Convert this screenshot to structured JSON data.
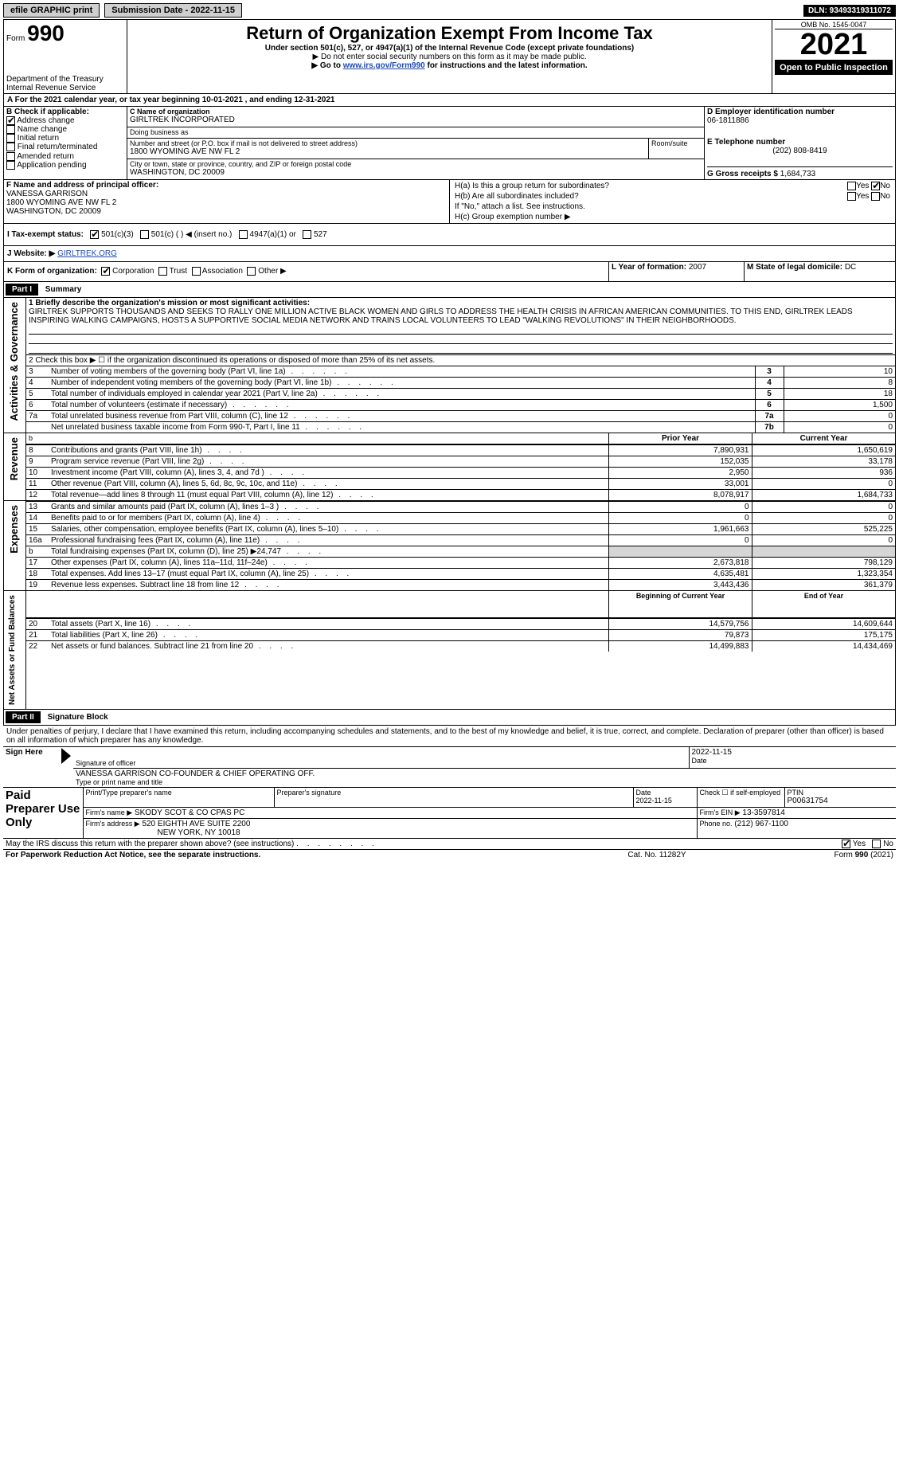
{
  "topbar": {
    "efile": "efile GRAPHIC print",
    "submission": "Submission Date - 2022-11-15",
    "dln": "DLN: 93493319311072"
  },
  "header": {
    "form_word": "Form",
    "form_num": "990",
    "title": "Return of Organization Exempt From Income Tax",
    "subtitle": "Under section 501(c), 527, or 4947(a)(1) of the Internal Revenue Code (except private foundations)",
    "warn": "▶ Do not enter social security numbers on this form as it may be made public.",
    "goto_pre": "▶ Go to ",
    "goto_link": "www.irs.gov/Form990",
    "goto_post": " for instructions and the latest information.",
    "dept1": "Department of the Treasury",
    "dept2": "Internal Revenue Service",
    "omb": "OMB No. 1545-0047",
    "year": "2021",
    "open": "Open to Public Inspection"
  },
  "A": {
    "label": "For the 2021 calendar year, or tax year beginning ",
    "begin": "10-01-2021",
    "mid": " , and ending ",
    "end": "12-31-2021"
  },
  "B": {
    "label": "B Check if applicable:",
    "items": [
      "Address change",
      "Name change",
      "Initial return",
      "Final return/terminated",
      "Amended return",
      "Application pending"
    ],
    "checked_index": 0
  },
  "C": {
    "name_lbl": "C Name of organization",
    "name": "GIRLTREK INCORPORATED",
    "dba_lbl": "Doing business as",
    "dba": "",
    "street_lbl": "Number and street (or P.O. box if mail is not delivered to street address)",
    "room_lbl": "Room/suite",
    "street": "1800 WYOMING AVE NW FL 2",
    "city_lbl": "City or town, state or province, country, and ZIP or foreign postal code",
    "city": "WASHINGTON, DC  20009"
  },
  "D": {
    "lbl": "D Employer identification number",
    "val": "06-1811886"
  },
  "E": {
    "lbl": "E Telephone number",
    "val": "(202) 808-8419"
  },
  "G": {
    "lbl": "G Gross receipts $",
    "val": "1,684,733"
  },
  "F": {
    "lbl": "F  Name and address of principal officer:",
    "name": "VANESSA GARRISON",
    "addr1": "1800 WYOMING AVE NW FL 2",
    "addr2": "WASHINGTON, DC  20009"
  },
  "H": {
    "a": "H(a)  Is this a group return for subordinates?",
    "b": "H(b)  Are all subordinates included?",
    "b_note": "If \"No,\" attach a list. See instructions.",
    "c": "H(c)  Group exemption number ▶",
    "yes": "Yes",
    "no": "No"
  },
  "I": {
    "lbl": "I  Tax-exempt status:",
    "opts": [
      "501(c)(3)",
      "501(c) (  ) ◀ (insert no.)",
      "4947(a)(1) or",
      "527"
    ]
  },
  "J": {
    "lbl": "J  Website: ▶",
    "val": "GIRLTREK.ORG"
  },
  "K": {
    "lbl": "K Form of organization:",
    "opts": [
      "Corporation",
      "Trust",
      "Association",
      "Other ▶"
    ]
  },
  "L": {
    "lbl": "L Year of formation:",
    "val": "2007"
  },
  "M": {
    "lbl": "M State of legal domicile:",
    "val": "DC"
  },
  "part1": {
    "tag": "Part I",
    "title": "Summary"
  },
  "mission": {
    "lbl": "1  Briefly describe the organization's mission or most significant activities:",
    "text": "GIRLTREK SUPPORTS THOUSANDS AND SEEKS TO RALLY ONE MILLION ACTIVE BLACK WOMEN AND GIRLS TO ADDRESS THE HEALTH CRISIS IN AFRICAN AMERICAN COMMUNITIES. TO THIS END, GIRLTREK LEADS INSPIRING WALKING CAMPAIGNS, HOSTS A SUPPORTIVE SOCIAL MEDIA NETWORK AND TRAINS LOCAL VOLUNTEERS TO LEAD \"WALKING REVOLUTIONS\" IN THEIR NEIGHBORHOODS."
  },
  "line2": "2  Check this box ▶ ☐ if the organization discontinued its operations or disposed of more than 25% of its net assets.",
  "gov_rows": [
    {
      "n": "3",
      "t": "Number of voting members of the governing body (Part VI, line 1a)",
      "box": "3",
      "v": "10"
    },
    {
      "n": "4",
      "t": "Number of independent voting members of the governing body (Part VI, line 1b)",
      "box": "4",
      "v": "8"
    },
    {
      "n": "5",
      "t": "Total number of individuals employed in calendar year 2021 (Part V, line 2a)",
      "box": "5",
      "v": "18"
    },
    {
      "n": "6",
      "t": "Total number of volunteers (estimate if necessary)",
      "box": "6",
      "v": "1,500"
    },
    {
      "n": "7a",
      "t": "Total unrelated business revenue from Part VIII, column (C), line 12",
      "box": "7a",
      "v": "0"
    },
    {
      "n": "",
      "t": "Net unrelated business taxable income from Form 990-T, Part I, line 11",
      "box": "7b",
      "v": "0"
    }
  ],
  "col_hdr": {
    "prior": "Prior Year",
    "current": "Current Year"
  },
  "rev_rows": [
    {
      "n": "8",
      "t": "Contributions and grants (Part VIII, line 1h)",
      "p": "7,890,931",
      "c": "1,650,619"
    },
    {
      "n": "9",
      "t": "Program service revenue (Part VIII, line 2g)",
      "p": "152,035",
      "c": "33,178"
    },
    {
      "n": "10",
      "t": "Investment income (Part VIII, column (A), lines 3, 4, and 7d )",
      "p": "2,950",
      "c": "936"
    },
    {
      "n": "11",
      "t": "Other revenue (Part VIII, column (A), lines 5, 6d, 8c, 9c, 10c, and 11e)",
      "p": "33,001",
      "c": "0"
    },
    {
      "n": "12",
      "t": "Total revenue—add lines 8 through 11 (must equal Part VIII, column (A), line 12)",
      "p": "8,078,917",
      "c": "1,684,733"
    }
  ],
  "exp_rows": [
    {
      "n": "13",
      "t": "Grants and similar amounts paid (Part IX, column (A), lines 1–3 )",
      "p": "0",
      "c": "0"
    },
    {
      "n": "14",
      "t": "Benefits paid to or for members (Part IX, column (A), line 4)",
      "p": "0",
      "c": "0"
    },
    {
      "n": "15",
      "t": "Salaries, other compensation, employee benefits (Part IX, column (A), lines 5–10)",
      "p": "1,961,663",
      "c": "525,225"
    },
    {
      "n": "16a",
      "t": "Professional fundraising fees (Part IX, column (A), line 11e)",
      "p": "0",
      "c": "0"
    },
    {
      "n": "b",
      "t": "Total fundraising expenses (Part IX, column (D), line 25) ▶24,747",
      "p": "",
      "c": "",
      "shade": true
    },
    {
      "n": "17",
      "t": "Other expenses (Part IX, column (A), lines 11a–11d, 11f–24e)",
      "p": "2,673,818",
      "c": "798,129"
    },
    {
      "n": "18",
      "t": "Total expenses. Add lines 13–17 (must equal Part IX, column (A), line 25)",
      "p": "4,635,481",
      "c": "1,323,354"
    },
    {
      "n": "19",
      "t": "Revenue less expenses. Subtract line 18 from line 12",
      "p": "3,443,436",
      "c": "361,379"
    }
  ],
  "col_hdr2": {
    "begin": "Beginning of Current Year",
    "end": "End of Year"
  },
  "net_label": "b",
  "net_rows": [
    {
      "n": "20",
      "t": "Total assets (Part X, line 16)",
      "p": "14,579,756",
      "c": "14,609,644"
    },
    {
      "n": "21",
      "t": "Total liabilities (Part X, line 26)",
      "p": "79,873",
      "c": "175,175"
    },
    {
      "n": "22",
      "t": "Net assets or fund balances. Subtract line 21 from line 20",
      "p": "14,499,883",
      "c": "14,434,469"
    }
  ],
  "sections": {
    "gov": "Activities & Governance",
    "rev": "Revenue",
    "exp": "Expenses",
    "net": "Net Assets or Fund Balances"
  },
  "part2": {
    "tag": "Part II",
    "title": "Signature Block"
  },
  "sig": {
    "penalty": "Under penalties of perjury, I declare that I have examined this return, including accompanying schedules and statements, and to the best of my knowledge and belief, it is true, correct, and complete. Declaration of preparer (other than officer) is based on all information of which preparer has any knowledge.",
    "sign_here": "Sign Here",
    "sig_officer": "Signature of officer",
    "date": "Date",
    "date_val": "2022-11-15",
    "name_title": "VANESSA GARRISON  CO-FOUNDER & CHIEF OPERATING OFF.",
    "name_title_lbl": "Type or print name and title"
  },
  "paid": {
    "title": "Paid Preparer Use Only",
    "print_lbl": "Print/Type preparer's name",
    "sig_lbl": "Preparer's signature",
    "date_lbl": "Date",
    "date_val": "2022-11-15",
    "check_lbl": "Check ☐ if self-employed",
    "ptin_lbl": "PTIN",
    "ptin": "P00631754",
    "firm_name_lbl": "Firm's name    ▶",
    "firm_name": "SKODY SCOT & CO CPAS PC",
    "firm_ein_lbl": "Firm's EIN ▶",
    "firm_ein": "13-3597814",
    "firm_addr_lbl": "Firm's address ▶",
    "firm_addr1": "520 EIGHTH AVE SUITE 2200",
    "firm_addr2": "NEW YORK, NY  10018",
    "phone_lbl": "Phone no.",
    "phone": "(212) 967-1100"
  },
  "discuss": {
    "q": "May the IRS discuss this return with the preparer shown above? (see instructions)",
    "yes": "Yes",
    "no": "No"
  },
  "footer": {
    "pra": "For Paperwork Reduction Act Notice, see the separate instructions.",
    "cat": "Cat. No. 11282Y",
    "form": "Form 990 (2021)"
  }
}
